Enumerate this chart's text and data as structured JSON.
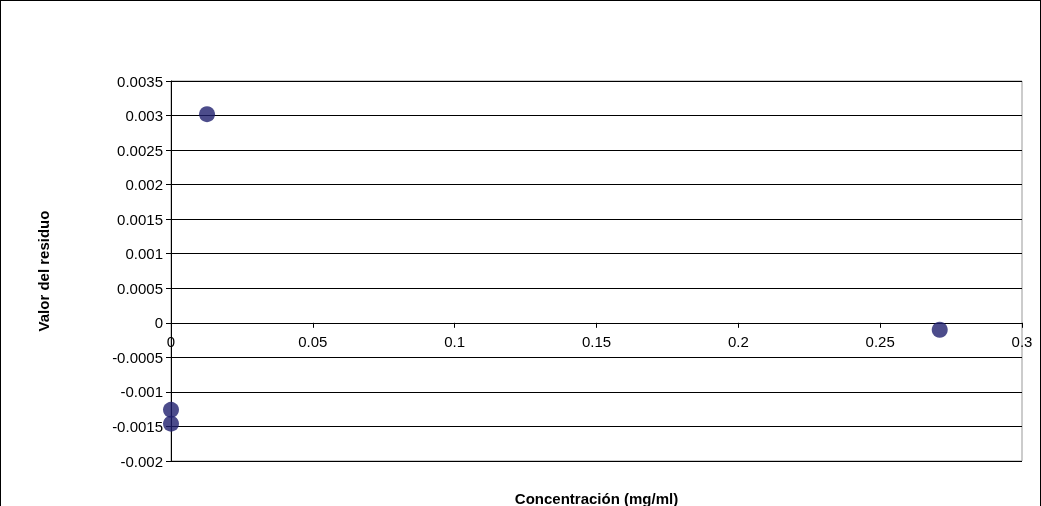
{
  "chart_data": {
    "type": "scatter",
    "xlabel": "Concentración (mg/ml)",
    "ylabel": "Valor del residuo",
    "x": [
      0.0127,
      0.271,
      0,
      0
    ],
    "series": [
      {
        "color": "#1f1f6e",
        "values": [
          0.00302,
          -0.0001,
          -0.00126,
          -0.00146
        ]
      }
    ],
    "xlim": [
      0,
      0.3
    ],
    "xticks": [
      0,
      0.05,
      0.1,
      0.15,
      0.2,
      0.25,
      0.3
    ],
    "ylim": [
      -0.002,
      0.0035
    ],
    "yticks": [
      -0.002,
      -0.0015,
      -0.001,
      -0.0005,
      0,
      0.0005,
      0.001,
      0.0015,
      0.002,
      0.0025,
      0.003,
      0.0035
    ],
    "grid": "y",
    "marker": "circle"
  }
}
